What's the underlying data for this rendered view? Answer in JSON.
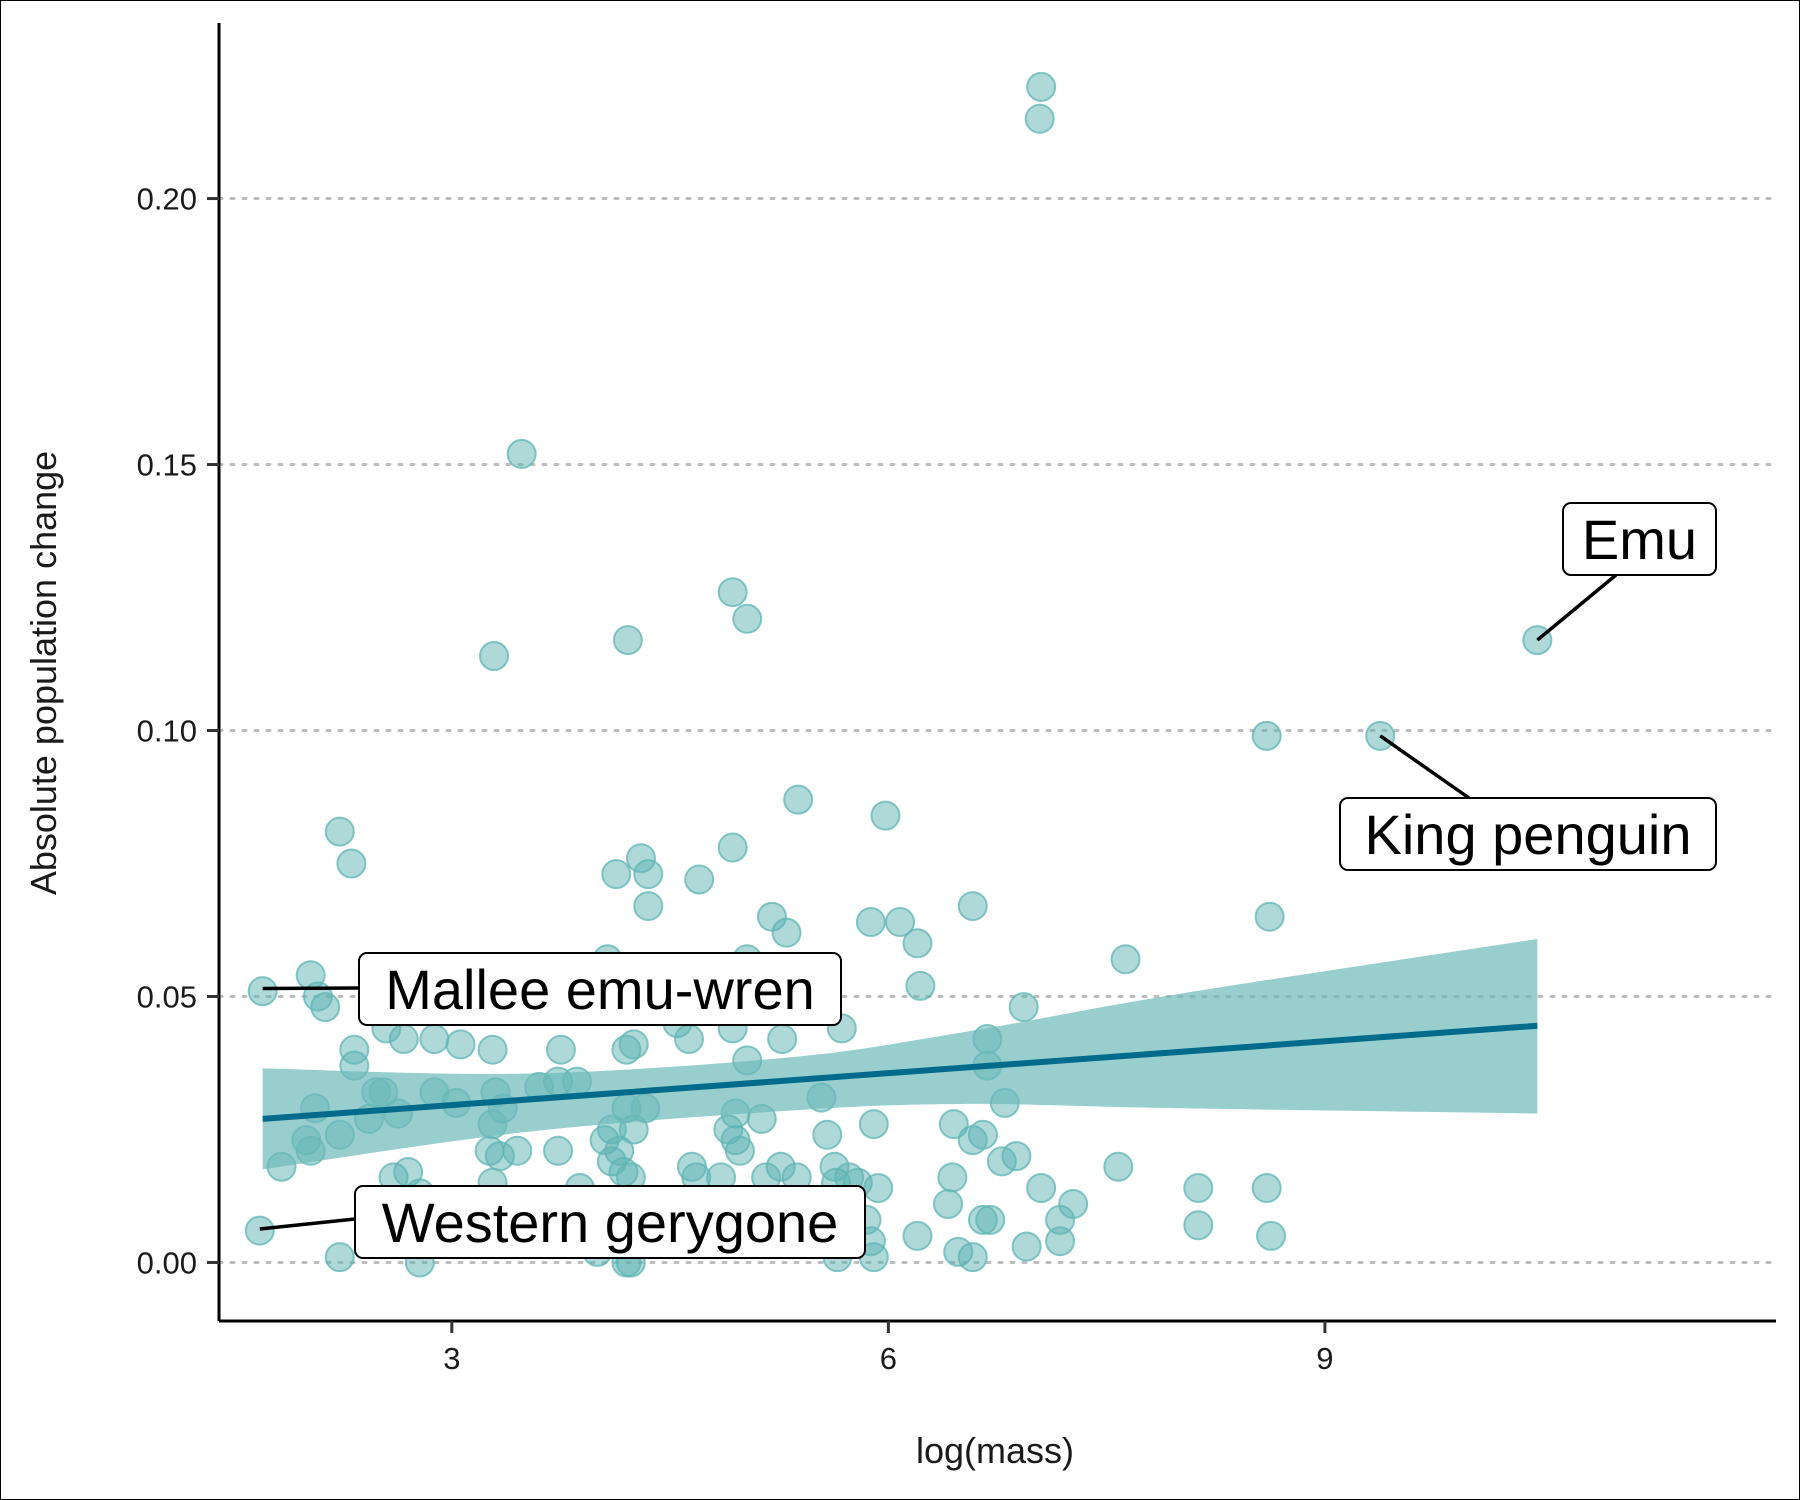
{
  "chart_data": {
    "type": "scatter",
    "xlabel": "log(mass)",
    "ylabel": "Absolute population change",
    "xlim": [
      1.4,
      12.1
    ],
    "ylim": [
      -0.011,
      0.233
    ],
    "x_ticks": [
      3,
      6,
      9
    ],
    "y_ticks": [
      0.0,
      0.05,
      0.1,
      0.15,
      0.2
    ],
    "x_tick_labels": [
      "3",
      "6",
      "9"
    ],
    "y_tick_labels": [
      "0.00",
      "0.05",
      "0.10",
      "0.15",
      "0.20"
    ],
    "grid": "horizontal dotted major lines",
    "colors": {
      "points": "#5fb4b4",
      "trend_line": "#006b8a",
      "confidence_band": "#6cb9b9"
    },
    "series": [
      {
        "points": [
          [
            7.05,
            0.221
          ],
          [
            7.04,
            0.215
          ],
          [
            3.48,
            0.152
          ],
          [
            4.93,
            0.126
          ],
          [
            5.03,
            0.121
          ],
          [
            4.21,
            0.117
          ],
          [
            3.29,
            0.114
          ],
          [
            10.46,
            0.117
          ],
          [
            8.6,
            0.099
          ],
          [
            9.38,
            0.099
          ],
          [
            5.38,
            0.087
          ],
          [
            5.98,
            0.084
          ],
          [
            2.23,
            0.081
          ],
          [
            2.31,
            0.075
          ],
          [
            4.93,
            0.078
          ],
          [
            4.3,
            0.076
          ],
          [
            4.13,
            0.073
          ],
          [
            4.35,
            0.073
          ],
          [
            4.7,
            0.072
          ],
          [
            4.35,
            0.067
          ],
          [
            6.58,
            0.067
          ],
          [
            8.62,
            0.065
          ],
          [
            5.2,
            0.065
          ],
          [
            5.88,
            0.064
          ],
          [
            6.08,
            0.064
          ],
          [
            5.3,
            0.062
          ],
          [
            6.2,
            0.06
          ],
          [
            7.63,
            0.057
          ],
          [
            4.07,
            0.057
          ],
          [
            5.03,
            0.057
          ],
          [
            6.22,
            0.052
          ],
          [
            1.7,
            0.051
          ],
          [
            2.03,
            0.054
          ],
          [
            2.08,
            0.05
          ],
          [
            2.13,
            0.048
          ],
          [
            6.93,
            0.048
          ],
          [
            4.55,
            0.045
          ],
          [
            5.68,
            0.044
          ],
          [
            4.93,
            0.044
          ],
          [
            2.55,
            0.044
          ],
          [
            2.67,
            0.042
          ],
          [
            2.88,
            0.042
          ],
          [
            3.06,
            0.041
          ],
          [
            4.25,
            0.041
          ],
          [
            4.2,
            0.04
          ],
          [
            2.33,
            0.04
          ],
          [
            3.28,
            0.04
          ],
          [
            3.75,
            0.04
          ],
          [
            4.63,
            0.042
          ],
          [
            5.27,
            0.042
          ],
          [
            6.68,
            0.042
          ],
          [
            2.33,
            0.037
          ],
          [
            5.03,
            0.038
          ],
          [
            6.68,
            0.037
          ],
          [
            3.73,
            0.034
          ],
          [
            3.86,
            0.034
          ],
          [
            3.6,
            0.033
          ],
          [
            3.3,
            0.032
          ],
          [
            2.48,
            0.032
          ],
          [
            2.53,
            0.032
          ],
          [
            2.88,
            0.032
          ],
          [
            5.54,
            0.031
          ],
          [
            6.8,
            0.03
          ],
          [
            3.03,
            0.03
          ],
          [
            2.06,
            0.029
          ],
          [
            4.33,
            0.029
          ],
          [
            4.2,
            0.029
          ],
          [
            3.35,
            0.029
          ],
          [
            4.95,
            0.028
          ],
          [
            5.13,
            0.027
          ],
          [
            2.43,
            0.027
          ],
          [
            2.63,
            0.028
          ],
          [
            5.9,
            0.026
          ],
          [
            6.45,
            0.026
          ],
          [
            4.1,
            0.025
          ],
          [
            3.28,
            0.026
          ],
          [
            4.25,
            0.025
          ],
          [
            4.9,
            0.025
          ],
          [
            5.58,
            0.024
          ],
          [
            6.65,
            0.024
          ],
          [
            2.0,
            0.023
          ],
          [
            2.23,
            0.024
          ],
          [
            4.05,
            0.023
          ],
          [
            4.95,
            0.023
          ],
          [
            6.58,
            0.023
          ],
          [
            3.26,
            0.021
          ],
          [
            3.45,
            0.021
          ],
          [
            3.73,
            0.021
          ],
          [
            4.15,
            0.021
          ],
          [
            4.98,
            0.021
          ],
          [
            2.03,
            0.021
          ],
          [
            6.88,
            0.02
          ],
          [
            6.78,
            0.019
          ],
          [
            3.33,
            0.02
          ],
          [
            4.1,
            0.019
          ],
          [
            1.83,
            0.018
          ],
          [
            4.65,
            0.018
          ],
          [
            5.26,
            0.018
          ],
          [
            5.63,
            0.018
          ],
          [
            7.58,
            0.018
          ],
          [
            4.18,
            0.017
          ],
          [
            2.7,
            0.017
          ],
          [
            4.68,
            0.016
          ],
          [
            4.85,
            0.016
          ],
          [
            5.16,
            0.016
          ],
          [
            5.37,
            0.016
          ],
          [
            5.73,
            0.016
          ],
          [
            6.44,
            0.016
          ],
          [
            4.23,
            0.016
          ],
          [
            2.6,
            0.016
          ],
          [
            3.28,
            0.015
          ],
          [
            5.64,
            0.015
          ],
          [
            5.79,
            0.015
          ],
          [
            5.93,
            0.014
          ],
          [
            7.05,
            0.014
          ],
          [
            8.13,
            0.014
          ],
          [
            8.6,
            0.014
          ],
          [
            3.88,
            0.014
          ],
          [
            2.78,
            0.013
          ],
          [
            7.27,
            0.011
          ],
          [
            6.41,
            0.011
          ],
          [
            5.63,
            0.01
          ],
          [
            5.85,
            0.008
          ],
          [
            7.18,
            0.008
          ],
          [
            6.65,
            0.008
          ],
          [
            6.7,
            0.008
          ],
          [
            1.68,
            0.006
          ],
          [
            8.13,
            0.007
          ],
          [
            8.63,
            0.005
          ],
          [
            6.2,
            0.005
          ],
          [
            7.18,
            0.004
          ],
          [
            5.88,
            0.004
          ],
          [
            6.95,
            0.003
          ],
          [
            6.48,
            0.002
          ],
          [
            6.58,
            0.001
          ],
          [
            5.65,
            0.001
          ],
          [
            5.9,
            0.001
          ],
          [
            2.23,
            0.001
          ],
          [
            4.0,
            0.002
          ],
          [
            4.2,
            0.0
          ],
          [
            2.78,
            0.0
          ],
          [
            4.23,
            0.0
          ]
        ]
      }
    ],
    "trend": {
      "x_start": 1.7,
      "x_end": 10.46,
      "y_start": 0.027,
      "y_end": 0.0445,
      "ci_lower": [
        [
          1.7,
          0.0175
        ],
        [
          3.5,
          0.0245
        ],
        [
          5.3,
          0.0285
        ],
        [
          6.5,
          0.0298
        ],
        [
          8.0,
          0.029
        ],
        [
          10.46,
          0.028
        ]
      ],
      "ci_upper": [
        [
          1.7,
          0.0365
        ],
        [
          3.5,
          0.0355
        ],
        [
          5.3,
          0.0385
        ],
        [
          6.5,
          0.0432
        ],
        [
          8.0,
          0.0505
        ],
        [
          10.46,
          0.0608
        ]
      ]
    },
    "annotations": [
      {
        "label": "Emu",
        "x": 10.46,
        "y": 0.117
      },
      {
        "label": "King penguin",
        "x": 9.38,
        "y": 0.099
      },
      {
        "label": "Mallee emu-wren",
        "x": 1.7,
        "y": 0.0515
      },
      {
        "label": "Western gerygone",
        "x": 1.68,
        "y": 0.0063
      }
    ]
  }
}
